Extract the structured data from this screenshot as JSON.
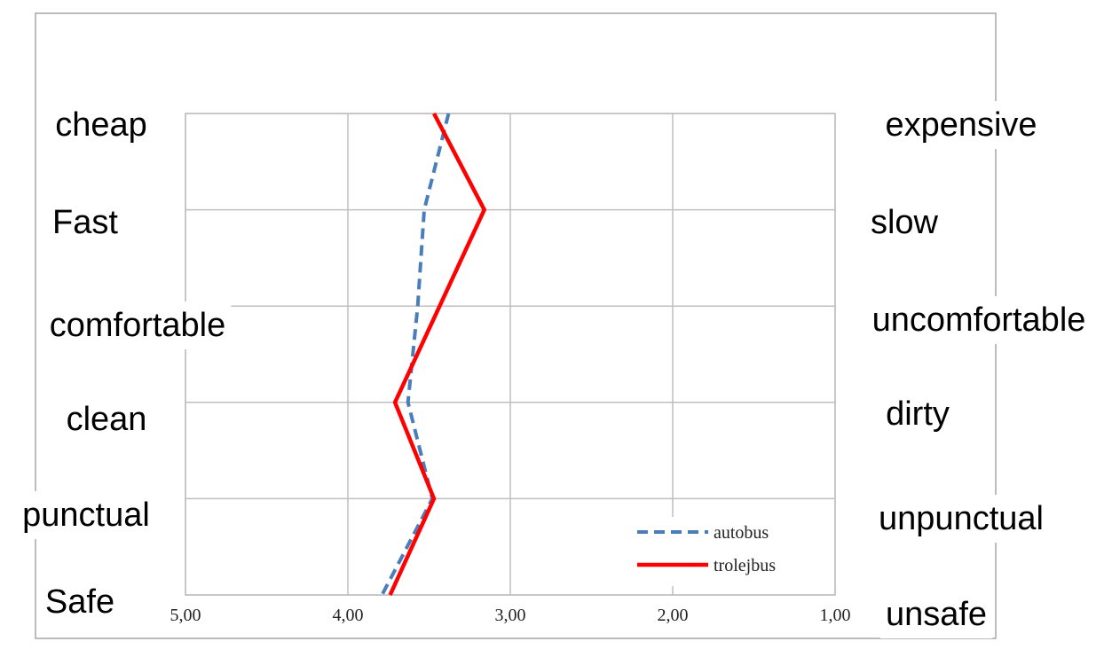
{
  "chart_data": {
    "type": "line",
    "orientation": "vertical-profile",
    "title": "",
    "xlabel": "",
    "ylabel": "",
    "xlim": [
      5.0,
      1.0
    ],
    "x_reversed": true,
    "x_ticks": [
      "5,00",
      "4,00",
      "3,00",
      "2,00",
      "1,00"
    ],
    "x_tick_values": [
      5,
      4,
      3,
      2,
      1
    ],
    "grid": true,
    "legend_position": "bottom-right",
    "left_labels": [
      "cheap",
      "Fast",
      "comfortable",
      "clean",
      "punctual",
      "Safe"
    ],
    "right_labels": [
      "expensive",
      "slow",
      "uncomfortable",
      "dirty",
      "unpunctual",
      "unsafe"
    ],
    "series": [
      {
        "name": "autobus",
        "color": "#4a7ebb",
        "style": "dashed",
        "values": [
          3.38,
          3.53,
          3.57,
          3.63,
          3.48,
          3.79
        ]
      },
      {
        "name": "trolejbus",
        "color": "#ff0000",
        "style": "solid",
        "values": [
          3.47,
          3.16,
          null,
          3.71,
          3.47,
          3.74
        ]
      }
    ]
  }
}
